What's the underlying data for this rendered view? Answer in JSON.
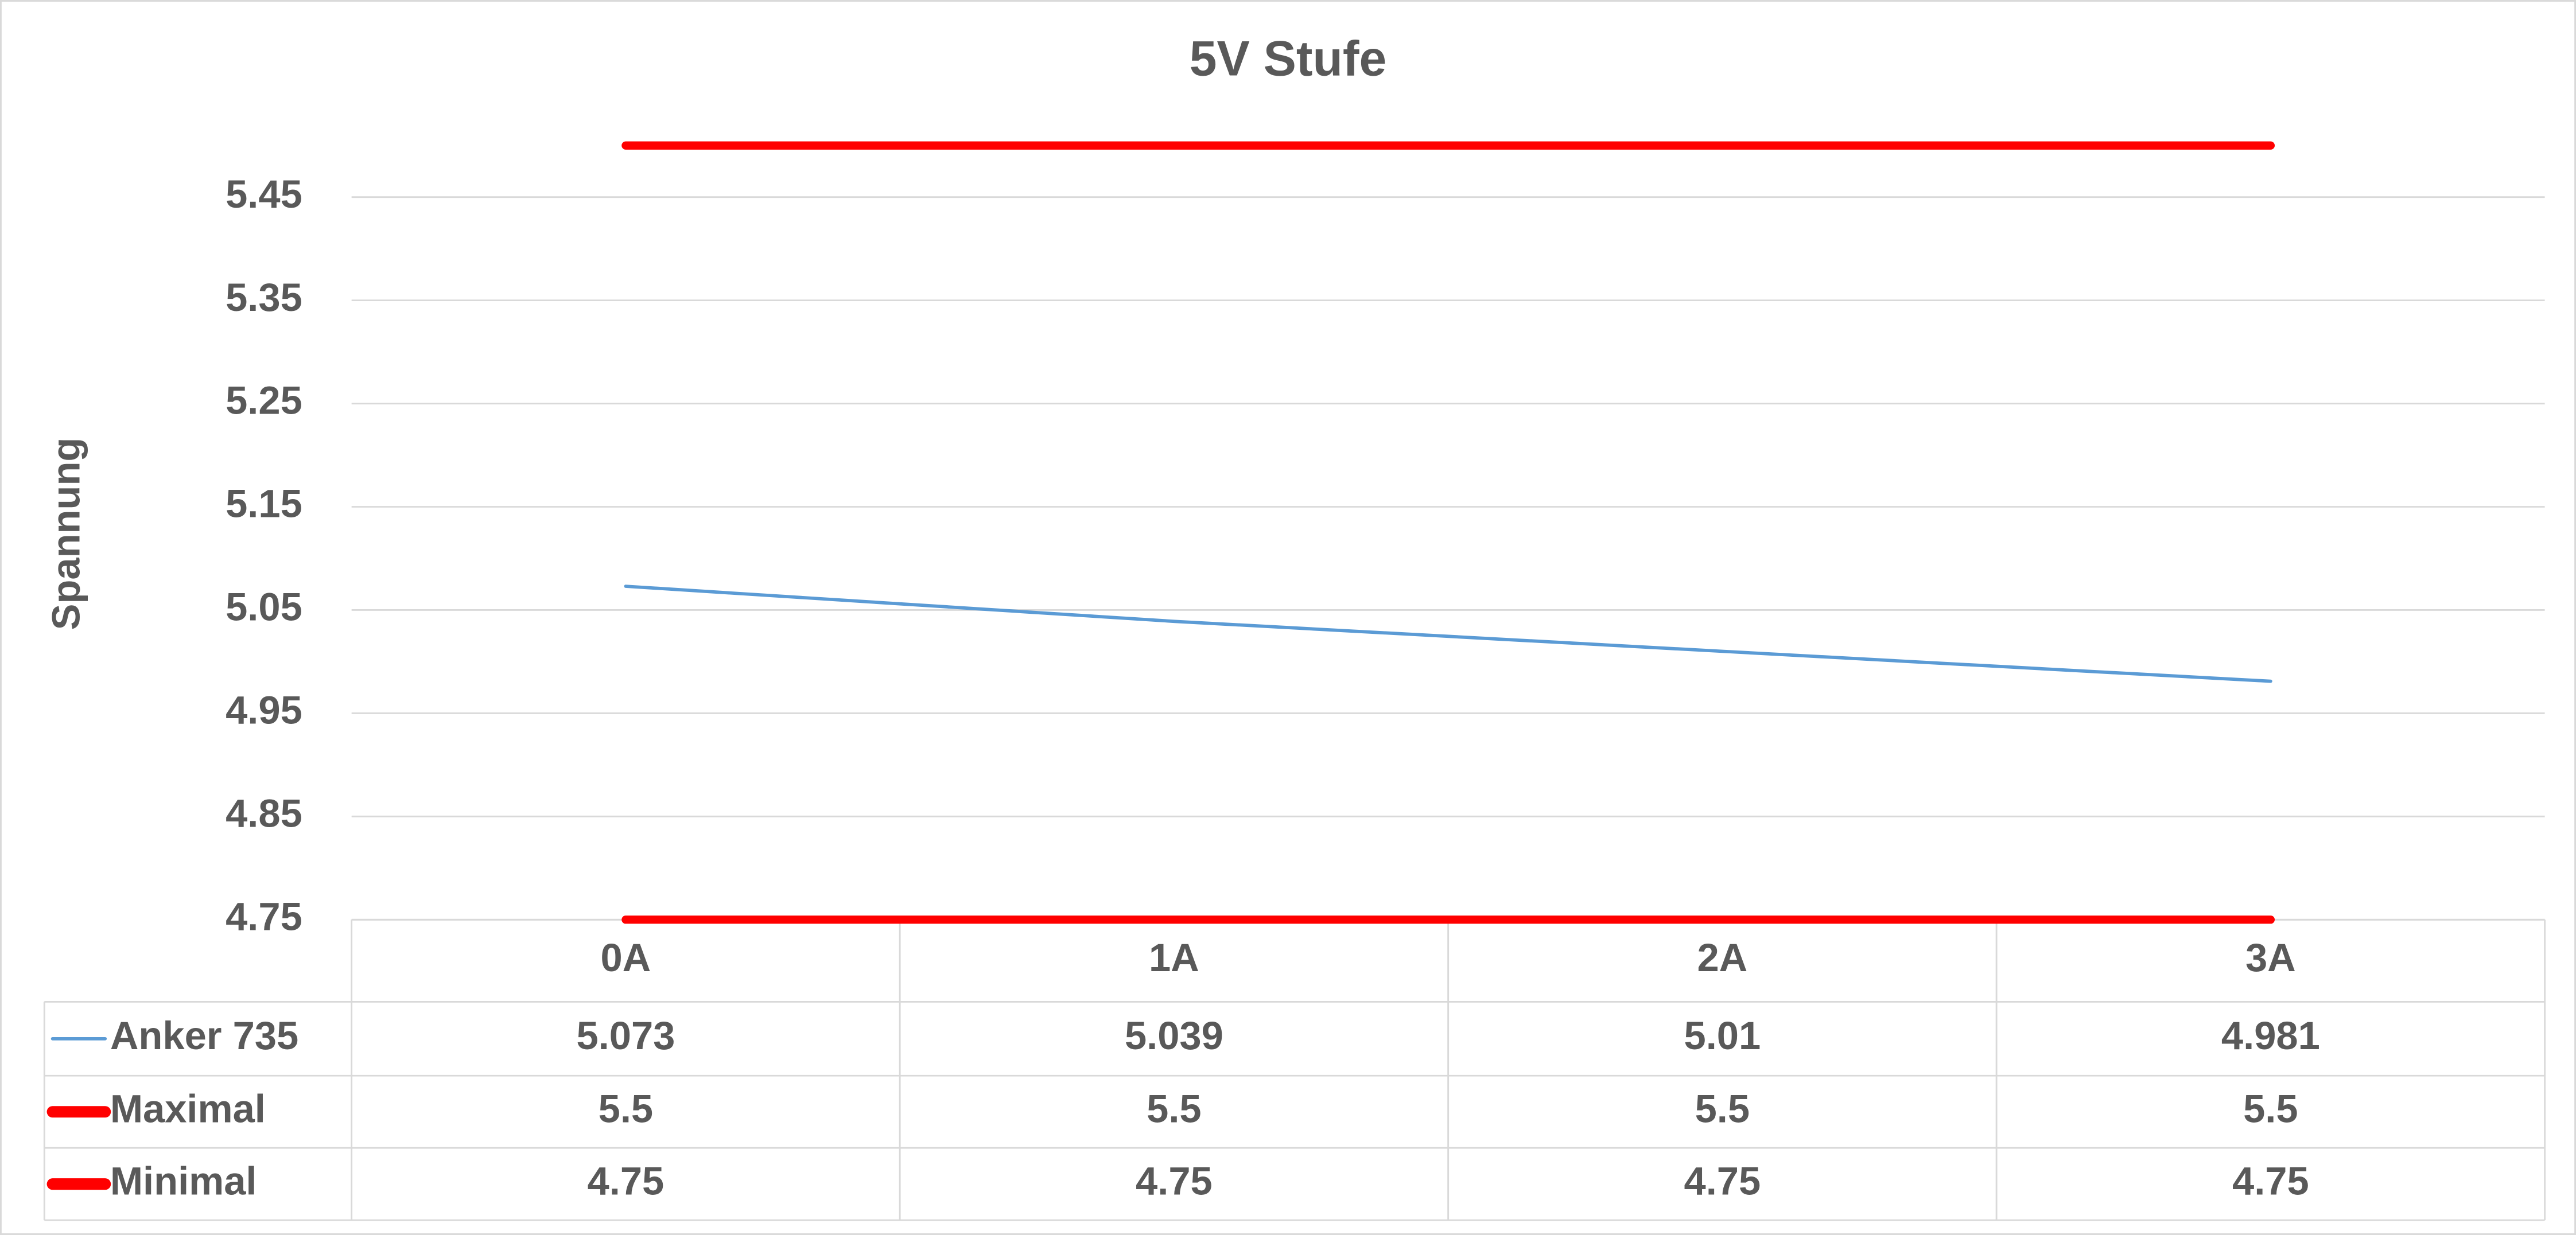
{
  "chart_data": {
    "type": "line",
    "title": "5V Stufe",
    "y_label": "Spannung",
    "categories": [
      "0A",
      "1A",
      "2A",
      "3A"
    ],
    "series": [
      {
        "name": "Anker 735",
        "color": "#5b9bd5",
        "linewidth": 2,
        "values": [
          5.073,
          5.039,
          5.01,
          4.981
        ]
      },
      {
        "name": "Maximal",
        "color": "#ff0000",
        "linewidth": 5,
        "values": [
          5.5,
          5.5,
          5.5,
          5.5
        ]
      },
      {
        "name": "Minimal",
        "color": "#ff0000",
        "linewidth": 5,
        "values": [
          4.75,
          4.75,
          4.75,
          4.75
        ]
      }
    ],
    "ylim": [
      4.75,
      5.5
    ],
    "yticks": [
      4.75,
      4.85,
      4.95,
      5.05,
      5.15,
      5.25,
      5.35,
      5.45
    ],
    "grid": true,
    "data_table": true
  }
}
